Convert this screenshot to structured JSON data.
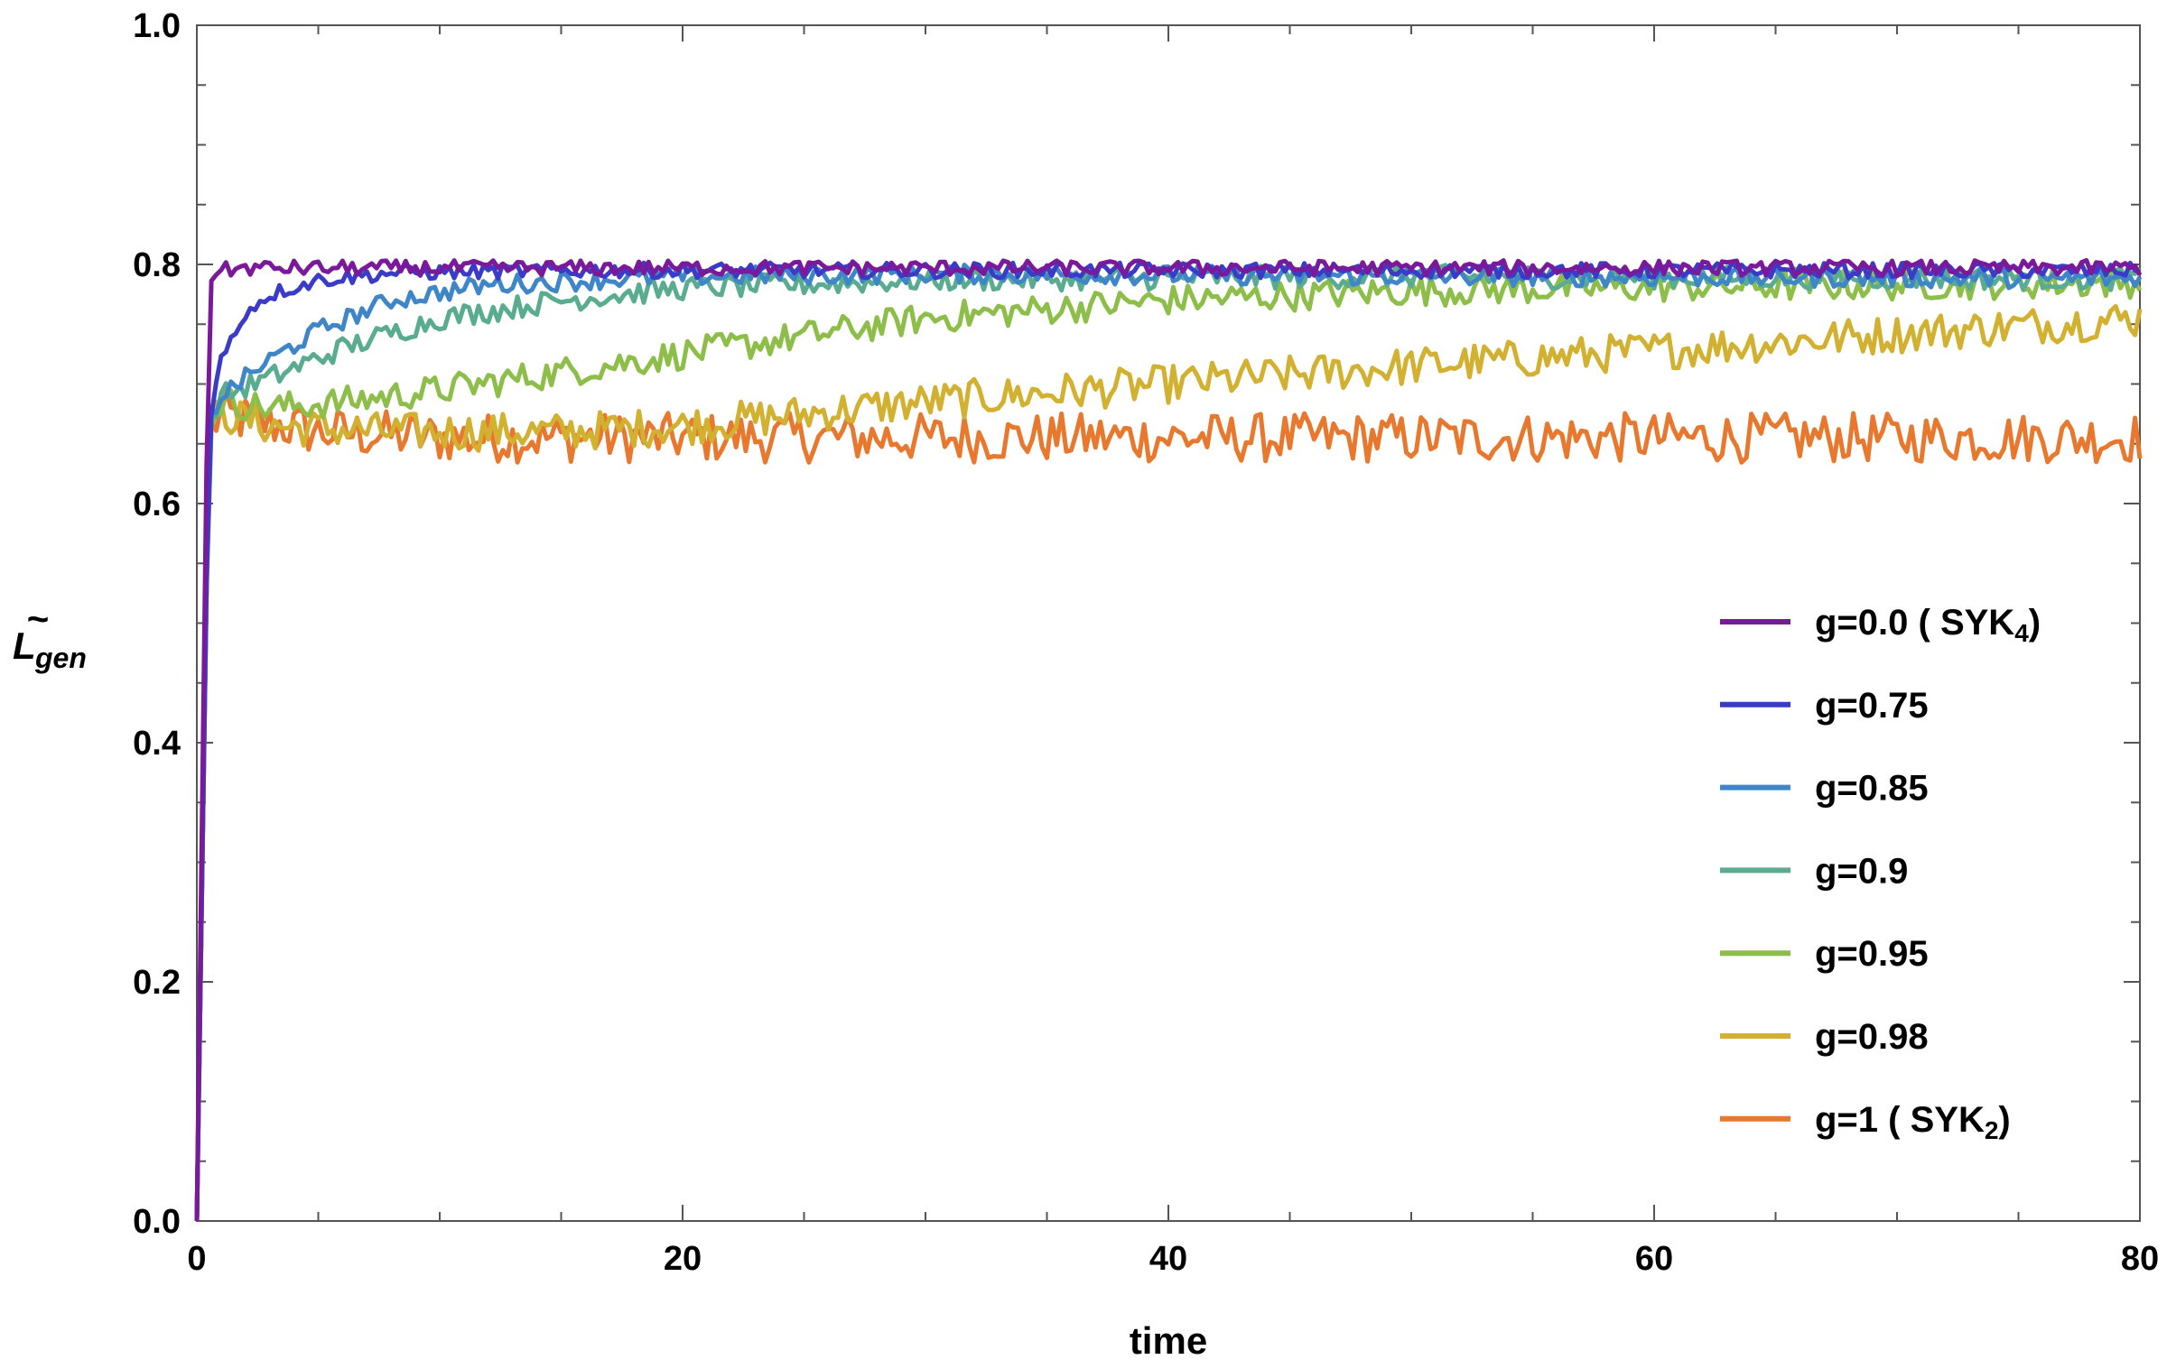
{
  "chart_data": {
    "type": "line",
    "title": "",
    "xlabel": "time",
    "ylabel": {
      "main": "L",
      "sub": "gen",
      "accent": "~"
    },
    "xlim": [
      0,
      80
    ],
    "ylim": [
      0,
      1
    ],
    "x_ticks": [
      0,
      20,
      40,
      60,
      80
    ],
    "x_tick_labels": [
      "0",
      "20",
      "40",
      "60",
      "80"
    ],
    "y_ticks": [
      0,
      0.2,
      0.4,
      0.6,
      0.8,
      1.0
    ],
    "y_tick_labels": [
      "0.0",
      "0.2",
      "0.4",
      "0.6",
      "0.8",
      "1.0"
    ],
    "grid": false,
    "frame": true,
    "legend_position": "right-middle",
    "series": [
      {
        "label": "g=0.0 ( SYK",
        "label_sub": "4",
        "label_end": ")",
        "color": "#7a1a9a",
        "x": [
          0,
          0.5,
          1,
          2,
          4,
          8,
          15,
          30,
          50,
          80
        ],
        "y": [
          0,
          0.79,
          0.795,
          0.797,
          0.797,
          0.797,
          0.797,
          0.797,
          0.797,
          0.797
        ]
      },
      {
        "label": "g=0.75",
        "label_sub": "",
        "label_end": "",
        "color": "#3a3cc8",
        "x": [
          0,
          0.5,
          1,
          2,
          3,
          5,
          8,
          15,
          30,
          50,
          80
        ],
        "y": [
          0,
          0.67,
          0.72,
          0.76,
          0.775,
          0.787,
          0.793,
          0.795,
          0.795,
          0.795,
          0.795
        ]
      },
      {
        "label": "g=0.85",
        "label_sub": "",
        "label_end": "",
        "color": "#3f86c8",
        "x": [
          0,
          0.5,
          1,
          3,
          5,
          8,
          12,
          20,
          30,
          50,
          80
        ],
        "y": [
          0,
          0.67,
          0.69,
          0.72,
          0.745,
          0.77,
          0.783,
          0.79,
          0.792,
          0.79,
          0.788
        ]
      },
      {
        "label": "g=0.9",
        "label_sub": "",
        "label_end": "",
        "color": "#5aac90",
        "x": [
          0,
          0.5,
          1,
          3,
          6,
          10,
          15,
          20,
          30,
          50,
          80
        ],
        "y": [
          0,
          0.67,
          0.69,
          0.705,
          0.73,
          0.755,
          0.77,
          0.78,
          0.787,
          0.79,
          0.788
        ]
      },
      {
        "label": "g=0.95",
        "label_sub": "",
        "label_end": "",
        "color": "#8ebe4a",
        "x": [
          0,
          0.5,
          1,
          3,
          6,
          10,
          15,
          20,
          25,
          30,
          40,
          50,
          60,
          80
        ],
        "y": [
          0,
          0.67,
          0.685,
          0.68,
          0.685,
          0.695,
          0.71,
          0.725,
          0.74,
          0.755,
          0.77,
          0.778,
          0.781,
          0.785
        ]
      },
      {
        "label": "g=0.98",
        "label_sub": "",
        "label_end": "",
        "color": "#d2b030",
        "x": [
          0,
          0.5,
          1,
          3,
          8,
          15,
          20,
          25,
          30,
          40,
          50,
          60,
          70,
          80
        ],
        "y": [
          0,
          0.665,
          0.675,
          0.665,
          0.66,
          0.66,
          0.665,
          0.675,
          0.685,
          0.7,
          0.715,
          0.728,
          0.742,
          0.755
        ]
      },
      {
        "label": "g=1 ( SYK",
        "label_sub": "2",
        "label_end": ")",
        "color": "#e8782e",
        "x": [
          0,
          0.5,
          1,
          2,
          5,
          10,
          20,
          40,
          60,
          80
        ],
        "y": [
          0,
          0.66,
          0.675,
          0.67,
          0.66,
          0.655,
          0.655,
          0.655,
          0.655,
          0.655
        ]
      }
    ]
  }
}
